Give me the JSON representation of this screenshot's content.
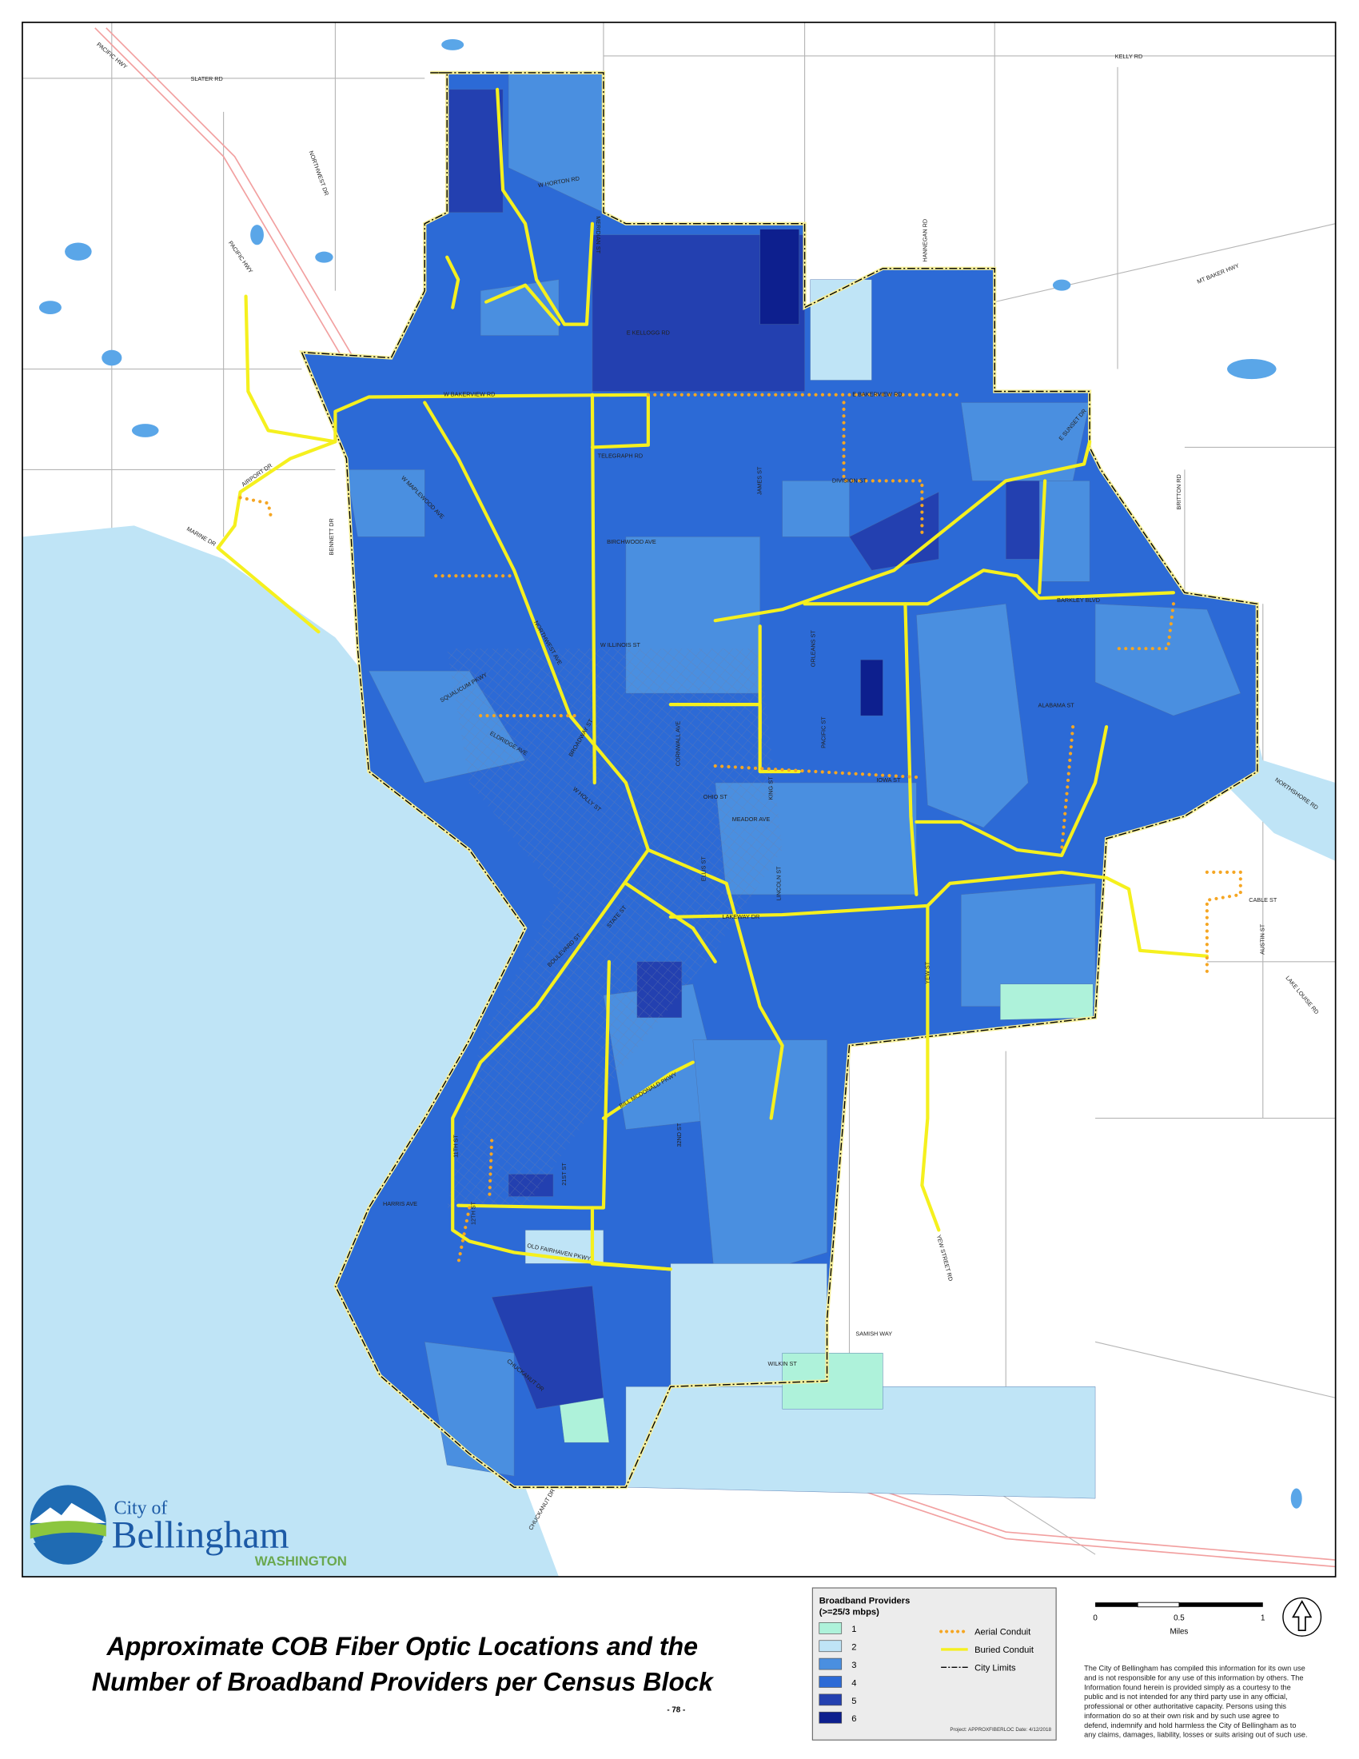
{
  "title": [
    "Approximate COB Fiber Optic Locations and the",
    "Number of Broadband Providers per Census Block"
  ],
  "page_number": "- 78 -",
  "logo": {
    "line1": "City of",
    "line2": "Bellingham",
    "line3": "WASHINGTON"
  },
  "legend": {
    "title": "Broadband Providers",
    "subtitle": "(>=25/3 mbps)",
    "classes": [
      {
        "label": "1",
        "color": "#aef2da"
      },
      {
        "label": "2",
        "color": "#bfe4f6"
      },
      {
        "label": "3",
        "color": "#4a8fe0"
      },
      {
        "label": "4",
        "color": "#2c6ad6"
      },
      {
        "label": "5",
        "color": "#2340b0"
      },
      {
        "label": "6",
        "color": "#0d1f8e"
      }
    ],
    "lines": [
      {
        "label": "Aerial Conduit",
        "color": "#f5a623"
      },
      {
        "label": "Buried Conduit",
        "color": "#f5f01e"
      },
      {
        "label": "City Limits",
        "color": "#000000"
      }
    ]
  },
  "scale": {
    "ticks": [
      "0",
      "0.5",
      "1"
    ],
    "unit": "Miles"
  },
  "project_note": "Project: APPROXFIBERLOC  Date: 4/12/2018",
  "disclaimer": [
    "The City of Bellingham has compiled this information for its own use",
    "and is not responsible for any use of this information by others. The",
    "Information found herein is provided simply as a courtesy to the",
    "public and is not intended for any third party use in any official,",
    "professional or other authoritative capacity. Persons using this",
    "information do so at their own risk and by such use agree to",
    "defend, indemnify and hold harmless the City of Bellingham as to",
    "any claims, damages, liability, losses or suits arising out of such use."
  ],
  "street_labels": [
    "SLATER RD",
    "KELLY RD",
    "PACIFIC HWY",
    "PACIFIC HWY",
    "NORTHWEST DR",
    "MT BAKER HWY",
    "HANNEGAN RD",
    "W BAKERVIEW RD",
    "E BAKERVIEW RD",
    "E KELLOGG RD",
    "W HORTON RD",
    "MERIDIAN ST",
    "TELEGRAPH RD",
    "DIVISION ST",
    "JAMES ST",
    "BRITTON RD",
    "E SUNSET DR",
    "AIRPORT DR",
    "MARINE DR",
    "BENNETT DR",
    "W MAPLEWOOD AVE",
    "BIRCHWOOD AVE",
    "NORTHWEST AVE",
    "W ILLINOIS ST",
    "BARKLEY BLVD",
    "ORLEANS ST",
    "ALABAMA ST",
    "SQUALICUM PKWY",
    "ELDRIDGE AVE",
    "CORNWALL AVE",
    "PACIFIC ST",
    "IOWA ST",
    "OHIO ST",
    "MEADOR AVE",
    "KING ST",
    "ELLIS ST",
    "LINCOLN ST",
    "LAKEWAY DR",
    "CABLE ST",
    "AUSTIN ST",
    "NORTHSHORE RD",
    "LAKE LOUISE RD",
    "YEW ST",
    "YEW STREET RD",
    "BOULEVARD ST",
    "STATE ST",
    "11TH ST",
    "21ST ST",
    "32ND ST",
    "HARRIS AVE",
    "12TH ST",
    "CHUCKANUT DR",
    "CHUCKANUT DR",
    "SAMISH WAY",
    "WILKIN ST",
    "OLD FAIRHAVEN PKWY",
    "BILL MCDONALD PKWY",
    "W HOLLY ST",
    "BROADWAY ST"
  ]
}
